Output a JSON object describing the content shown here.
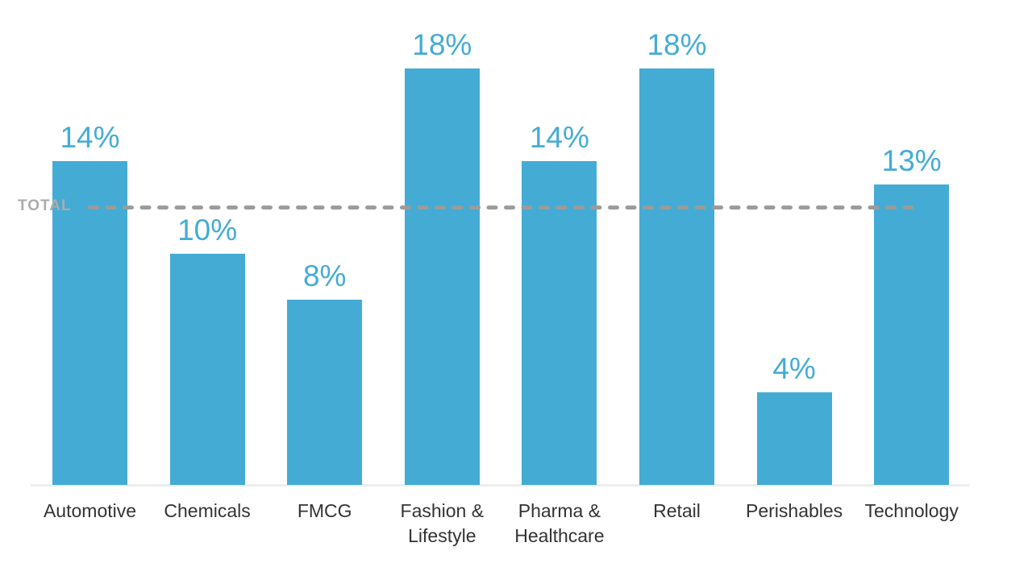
{
  "chart_data": {
    "type": "bar",
    "categories": [
      "Automotive",
      "Chemicals",
      "FMCG",
      "Fashion & Lifestyle",
      "Pharma & Healthcare",
      "Retail",
      "Perishables",
      "Technology"
    ],
    "values": [
      14,
      10,
      8,
      18,
      14,
      18,
      4,
      13
    ],
    "value_labels": [
      "14%",
      "10%",
      "8%",
      "18%",
      "14%",
      "18%",
      "4%",
      "13%"
    ],
    "title": "",
    "xlabel": "",
    "ylabel": "",
    "ylim": [
      0,
      20
    ],
    "grid": false,
    "legend": null,
    "reference_line": {
      "label": "TOTAL",
      "value": 12,
      "style": "dashed"
    },
    "colors": {
      "bar": "#44ACD4",
      "value_label": "#44ACD4",
      "reference_line": "#9B9B9B",
      "reference_label": "#ACACAC",
      "axis_line": "#EDEDED",
      "category_label": "#333333"
    }
  }
}
